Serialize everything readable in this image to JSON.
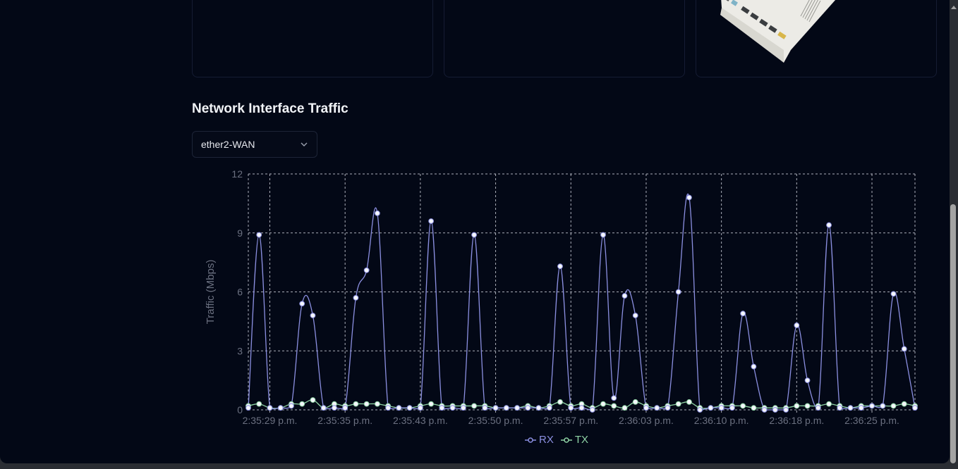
{
  "section": {
    "title": "Network Interface Traffic"
  },
  "interface_select": {
    "selected": "ether2-WAN",
    "icon": "chevron-down-icon"
  },
  "colors": {
    "background": "#030816",
    "rx": "#8b8fe0",
    "tx": "#8fd3a5",
    "grid": "#c9ccd6",
    "axis_text": "#6b7080"
  },
  "chart_data": {
    "type": "line",
    "title": "Network Interface Traffic",
    "xlabel": "",
    "ylabel": "Traffic (Mbps)",
    "ylim": [
      0,
      12
    ],
    "yticks": [
      0,
      3,
      6,
      9,
      12
    ],
    "grid": true,
    "legend_position": "bottom",
    "x_tick_labels": [
      "2:35:29 p.m.",
      "2:35:35 p.m.",
      "2:35:43 p.m.",
      "2:35:50 p.m.",
      "2:35:57 p.m.",
      "2:36:03 p.m.",
      "2:36:10 p.m.",
      "2:36:18 p.m.",
      "2:36:25 p.m."
    ],
    "x_tick_indices": [
      2,
      9,
      16,
      23,
      30,
      37,
      44,
      51,
      58
    ],
    "series": [
      {
        "name": "RX",
        "color": "#8b8fe0",
        "values": [
          0.1,
          8.9,
          0.1,
          0.1,
          0.2,
          5.4,
          4.8,
          0.1,
          0.1,
          0.1,
          5.7,
          7.1,
          10.0,
          0.1,
          0.1,
          0.1,
          0.1,
          9.6,
          0.1,
          0.1,
          0.1,
          8.9,
          0.1,
          0.1,
          0.1,
          0.1,
          0.1,
          0.1,
          0.1,
          7.3,
          0.1,
          0.1,
          0.0,
          8.9,
          0.6,
          5.8,
          4.8,
          0.1,
          0.1,
          0.1,
          6.0,
          10.8,
          0.0,
          0.1,
          0.1,
          0.1,
          4.9,
          2.2,
          0.0,
          0.0,
          0.0,
          4.3,
          1.5,
          0.1,
          9.4,
          0.1,
          0.1,
          0.1,
          0.2,
          0.2,
          5.9,
          3.1,
          0.1
        ]
      },
      {
        "name": "TX",
        "color": "#8fd3a5",
        "values": [
          0.2,
          0.3,
          0.1,
          0.1,
          0.3,
          0.3,
          0.5,
          0.1,
          0.3,
          0.2,
          0.3,
          0.3,
          0.3,
          0.2,
          0.1,
          0.1,
          0.2,
          0.3,
          0.2,
          0.2,
          0.2,
          0.2,
          0.2,
          0.1,
          0.1,
          0.1,
          0.2,
          0.1,
          0.2,
          0.4,
          0.2,
          0.3,
          0.1,
          0.3,
          0.2,
          0.1,
          0.4,
          0.2,
          0.1,
          0.2,
          0.3,
          0.4,
          0.1,
          0.1,
          0.2,
          0.2,
          0.2,
          0.1,
          0.1,
          0.1,
          0.1,
          0.2,
          0.2,
          0.2,
          0.3,
          0.2,
          0.1,
          0.2,
          0.2,
          0.2,
          0.2,
          0.3,
          0.2
        ]
      }
    ]
  },
  "legend": {
    "rx_label": "RX",
    "tx_label": "TX"
  }
}
